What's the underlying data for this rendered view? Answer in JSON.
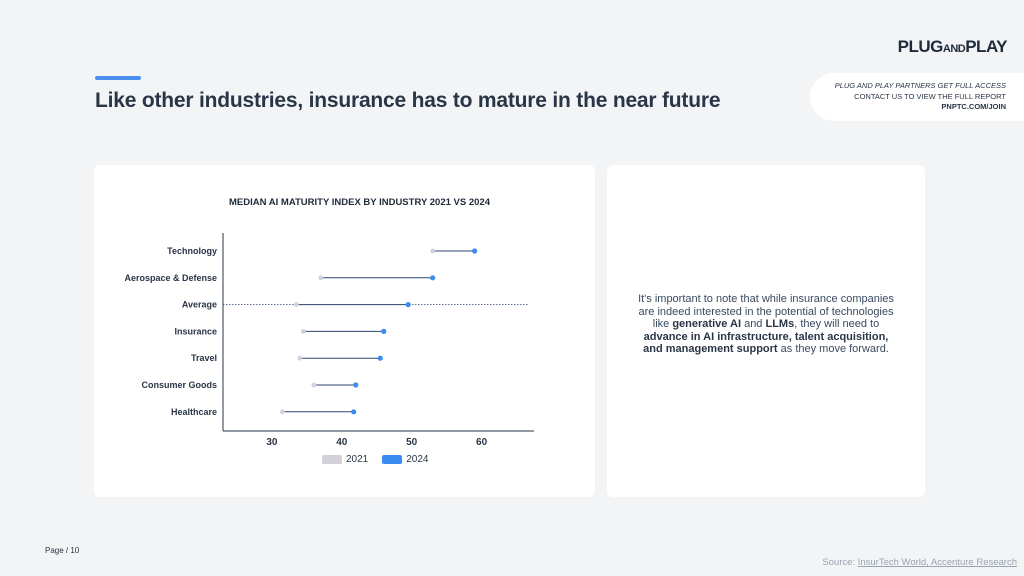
{
  "header": {
    "title": "Like other industries, insurance has to mature in the near future",
    "logo": {
      "main": "PLUG",
      "small": "AND",
      "end": "PLAY"
    },
    "access": {
      "line1": "PLUG AND PLAY PARTNERS GET FULL ACCESS",
      "line2": "CONTACT US TO VIEW THE FULL REPORT",
      "line3": "PNPTC.COM/JOIN"
    }
  },
  "colors": {
    "accent": "#4a8ff0",
    "series_2021": "#d3d0dc",
    "series_2024": "#3b8bf0",
    "connector": "#2c4670"
  },
  "chart_data": {
    "type": "dumbbell",
    "title": "MEDIAN AI MATURITY INDEX BY INDUSTRY 2021 VS 2024",
    "categories": [
      "Technology",
      "Aerospace & Defense",
      "Average",
      "Insurance",
      "Travel",
      "Consumer Goods",
      "Healthcare"
    ],
    "series": [
      {
        "name": "2021",
        "values": [
          53,
          37,
          33.5,
          34.5,
          34,
          36,
          31.5
        ]
      },
      {
        "name": "2024",
        "values": [
          59,
          53,
          49.5,
          46,
          45.5,
          42,
          41.7
        ]
      }
    ],
    "xticks": [
      30,
      40,
      50,
      60
    ],
    "xlim": [
      23,
      67.5
    ],
    "highlight_category": "Average",
    "legend": [
      "2021",
      "2024"
    ],
    "legend_position": "bottom"
  },
  "side_text": {
    "p1": "It's important to note that while insurance companies are indeed interested in the potential of technologies like ",
    "b1": "generative AI",
    "p2": " and ",
    "b2": "LLMs",
    "p3": ", they will need to ",
    "b3": "advance in AI infrastructure, talent acquisition, and management support",
    "p4": " as they move forward."
  },
  "footer": {
    "page": "Page / 10",
    "source_prefix": "Source: ",
    "source_link": "InsurTech World, Accenture Research"
  }
}
